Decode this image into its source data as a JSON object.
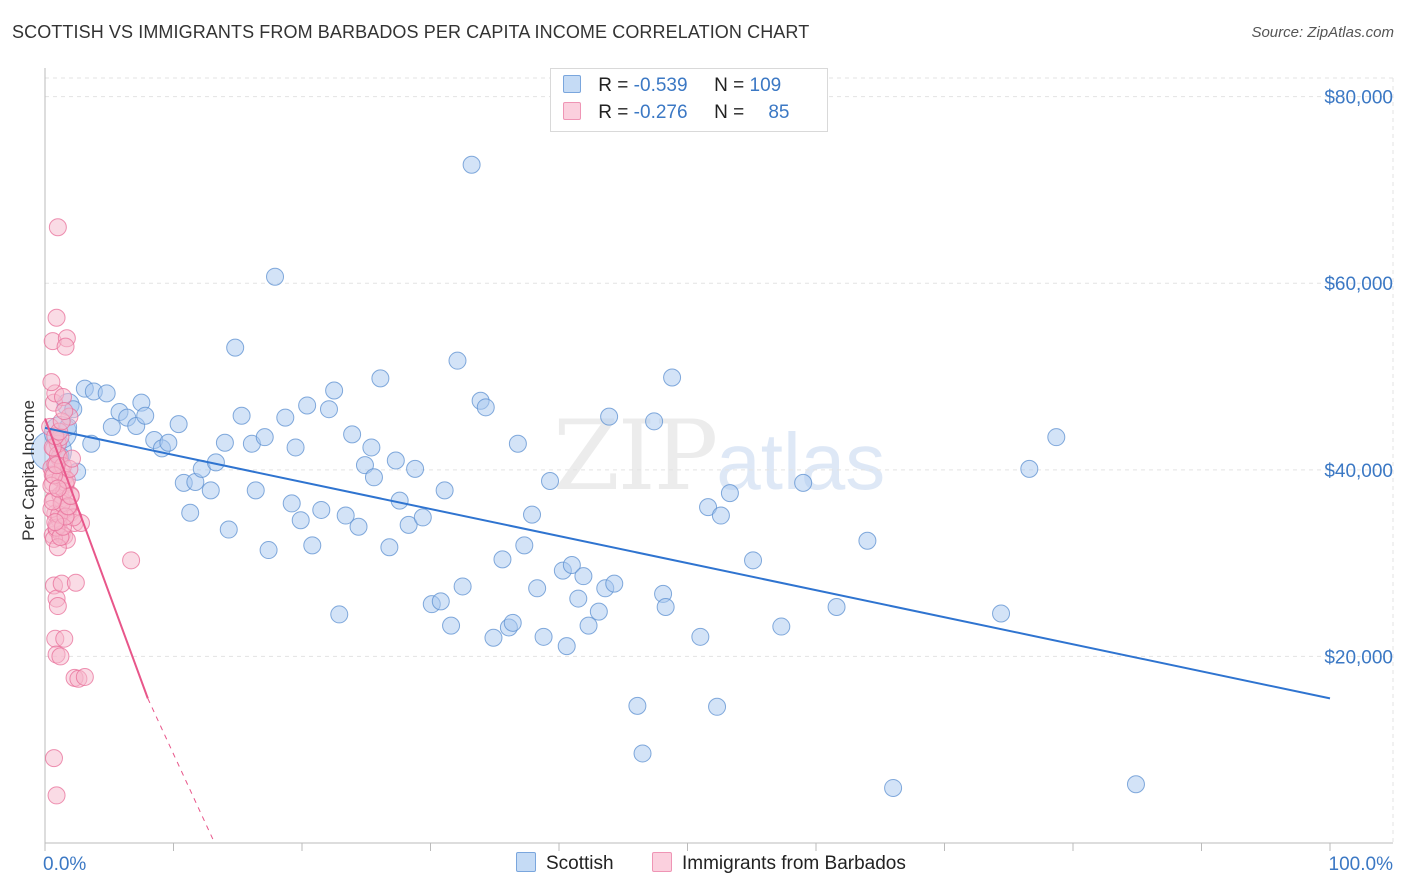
{
  "header": {
    "title": "SCOTTISH VS IMMIGRANTS FROM BARBADOS PER CAPITA INCOME CORRELATION CHART",
    "source": "Source: ZipAtlas.com"
  },
  "watermark": {
    "zip": "ZIP",
    "atlas": "atlas"
  },
  "legend": {
    "rows": [
      {
        "r_label": "R =",
        "r_value": "-0.539",
        "n_label": "N =",
        "n_value": "109",
        "color": "#a8c8f0"
      },
      {
        "r_label": "R =",
        "r_value": "-0.276",
        "n_label": "N =",
        "n_value": "85",
        "color": "#f6b8cc"
      }
    ]
  },
  "bottom_legend": {
    "scottish": "Scottish",
    "barbados": "Immigrants from Barbados"
  },
  "chart_data": {
    "type": "scatter",
    "title": "SCOTTISH VS IMMIGRANTS FROM BARBADOS PER CAPITA INCOME CORRELATION CHART",
    "xlabel": "",
    "ylabel": "Per Capita Income",
    "xlim": [
      0,
      100
    ],
    "ylim": [
      0,
      82000
    ],
    "x_tick_labels": [
      "0.0%",
      "100.0%"
    ],
    "y_ticks": [
      20000,
      40000,
      60000,
      80000
    ],
    "y_tick_labels": [
      "$20,000",
      "$40,000",
      "$60,000",
      "$80,000"
    ],
    "grid": true,
    "series": [
      {
        "name": "Scottish",
        "color": "#a8c8f0",
        "stroke": "#5b8fd0",
        "line_color": "#2f74d0",
        "R": -0.539,
        "N": 109,
        "trend": {
          "x": [
            0,
            100
          ],
          "y": [
            44500,
            15500
          ]
        },
        "points": [
          [
            0.5,
            42000
          ],
          [
            1.2,
            44000
          ],
          [
            1.8,
            47000
          ],
          [
            2.2,
            46500
          ],
          [
            3.1,
            48700
          ],
          [
            3.8,
            48400
          ],
          [
            4.8,
            48200
          ],
          [
            5.2,
            44600
          ],
          [
            5.8,
            46200
          ],
          [
            6.4,
            45600
          ],
          [
            7.1,
            44700
          ],
          [
            7.5,
            47200
          ],
          [
            7.8,
            45800
          ],
          [
            8.5,
            43200
          ],
          [
            9.1,
            42300
          ],
          [
            9.6,
            42900
          ],
          [
            10.4,
            44900
          ],
          [
            10.8,
            38600
          ],
          [
            11.3,
            35400
          ],
          [
            11.7,
            38700
          ],
          [
            12.2,
            40100
          ],
          [
            12.9,
            37800
          ],
          [
            13.3,
            40800
          ],
          [
            14.0,
            42900
          ],
          [
            14.3,
            33600
          ],
          [
            14.8,
            53100
          ],
          [
            15.3,
            45800
          ],
          [
            16.1,
            42800
          ],
          [
            16.4,
            37800
          ],
          [
            17.1,
            43500
          ],
          [
            17.4,
            31400
          ],
          [
            17.9,
            60700
          ],
          [
            18.7,
            45600
          ],
          [
            19.2,
            36400
          ],
          [
            19.5,
            42400
          ],
          [
            19.9,
            34600
          ],
          [
            20.4,
            46900
          ],
          [
            20.8,
            31900
          ],
          [
            21.5,
            35700
          ],
          [
            22.1,
            46500
          ],
          [
            22.5,
            48500
          ],
          [
            22.9,
            24500
          ],
          [
            23.4,
            35100
          ],
          [
            23.9,
            43800
          ],
          [
            24.4,
            33900
          ],
          [
            24.9,
            40500
          ],
          [
            25.4,
            42400
          ],
          [
            25.6,
            39200
          ],
          [
            26.1,
            49800
          ],
          [
            26.8,
            31700
          ],
          [
            27.3,
            41000
          ],
          [
            27.6,
            36700
          ],
          [
            28.3,
            34100
          ],
          [
            28.8,
            40100
          ],
          [
            29.4,
            34900
          ],
          [
            30.1,
            25600
          ],
          [
            30.8,
            25900
          ],
          [
            31.1,
            37800
          ],
          [
            31.6,
            23300
          ],
          [
            32.1,
            51700
          ],
          [
            32.5,
            27500
          ],
          [
            33.2,
            72700
          ],
          [
            33.9,
            47400
          ],
          [
            34.3,
            46700
          ],
          [
            34.9,
            22000
          ],
          [
            35.6,
            30400
          ],
          [
            36.1,
            23100
          ],
          [
            36.4,
            23600
          ],
          [
            36.8,
            42800
          ],
          [
            37.3,
            31900
          ],
          [
            37.9,
            35200
          ],
          [
            38.3,
            27300
          ],
          [
            38.8,
            22100
          ],
          [
            39.3,
            38800
          ],
          [
            40.3,
            29200
          ],
          [
            40.6,
            21100
          ],
          [
            41.0,
            29800
          ],
          [
            41.5,
            26200
          ],
          [
            41.9,
            28600
          ],
          [
            42.3,
            23300
          ],
          [
            43.1,
            24800
          ],
          [
            43.6,
            27300
          ],
          [
            43.9,
            45700
          ],
          [
            44.3,
            27800
          ],
          [
            46.1,
            14700
          ],
          [
            46.5,
            9600
          ],
          [
            47.4,
            45200
          ],
          [
            48.1,
            26700
          ],
          [
            48.3,
            25300
          ],
          [
            48.8,
            49900
          ],
          [
            51.0,
            22100
          ],
          [
            51.6,
            36000
          ],
          [
            52.3,
            14600
          ],
          [
            52.6,
            35100
          ],
          [
            53.3,
            37500
          ],
          [
            55.1,
            30300
          ],
          [
            57.3,
            23200
          ],
          [
            59.0,
            38600
          ],
          [
            61.6,
            25300
          ],
          [
            64.0,
            32400
          ],
          [
            66.0,
            5900
          ],
          [
            74.4,
            24600
          ],
          [
            76.6,
            40100
          ],
          [
            78.7,
            43500
          ],
          [
            84.9,
            6300
          ],
          [
            1.2,
            41500
          ],
          [
            2.5,
            39800
          ],
          [
            1.8,
            44600
          ],
          [
            3.6,
            42800
          ]
        ],
        "sizes": {
          "large_point_index": 1
        }
      },
      {
        "name": "Immigrants from Barbados",
        "color": "#f6b8cc",
        "stroke": "#e86d98",
        "line_color": "#e8568a",
        "R": -0.276,
        "N": 85,
        "trend": {
          "x": [
            0,
            8.0
          ],
          "y": [
            45500,
            15500
          ]
        },
        "trend_dashed": {
          "x": [
            8.0,
            13.2
          ],
          "y": [
            15500,
            0
          ]
        },
        "points": [
          [
            0.4,
            44600
          ],
          [
            0.5,
            40200
          ],
          [
            0.6,
            38600
          ],
          [
            0.7,
            36900
          ],
          [
            0.8,
            35300
          ],
          [
            0.9,
            34100
          ],
          [
            0.6,
            33000
          ],
          [
            0.7,
            47200
          ],
          [
            0.8,
            48200
          ],
          [
            0.5,
            49400
          ],
          [
            0.9,
            56300
          ],
          [
            0.6,
            53800
          ],
          [
            1.7,
            54100
          ],
          [
            1.6,
            53200
          ],
          [
            1.0,
            66000
          ],
          [
            0.7,
            42300
          ],
          [
            1.1,
            41300
          ],
          [
            1.3,
            39800
          ],
          [
            1.5,
            39200
          ],
          [
            1.6,
            38400
          ],
          [
            1.2,
            37300
          ],
          [
            1.4,
            36600
          ],
          [
            1.8,
            35700
          ],
          [
            2.0,
            35400
          ],
          [
            1.1,
            34700
          ],
          [
            0.9,
            33600
          ],
          [
            1.3,
            33100
          ],
          [
            1.5,
            32900
          ],
          [
            1.7,
            32500
          ],
          [
            2.3,
            34300
          ],
          [
            2.8,
            34300
          ],
          [
            1.0,
            42800
          ],
          [
            1.2,
            43500
          ],
          [
            1.9,
            45700
          ],
          [
            1.4,
            47800
          ],
          [
            0.7,
            27600
          ],
          [
            0.9,
            26200
          ],
          [
            1.0,
            25400
          ],
          [
            1.3,
            27800
          ],
          [
            2.4,
            27900
          ],
          [
            0.8,
            21900
          ],
          [
            1.5,
            21900
          ],
          [
            0.9,
            20200
          ],
          [
            1.2,
            20000
          ],
          [
            2.3,
            17700
          ],
          [
            2.6,
            17600
          ],
          [
            3.1,
            17800
          ],
          [
            0.7,
            9100
          ],
          [
            0.9,
            5100
          ],
          [
            6.7,
            30300
          ],
          [
            0.6,
            39500
          ],
          [
            0.8,
            40600
          ],
          [
            1.0,
            41600
          ],
          [
            1.2,
            39100
          ],
          [
            1.4,
            40400
          ],
          [
            1.6,
            38600
          ],
          [
            1.8,
            36000
          ],
          [
            2.0,
            37300
          ],
          [
            2.2,
            34900
          ],
          [
            0.5,
            35800
          ],
          [
            0.7,
            32600
          ],
          [
            0.9,
            33800
          ],
          [
            1.1,
            35200
          ],
          [
            1.3,
            36400
          ],
          [
            1.5,
            37700
          ],
          [
            1.7,
            38900
          ],
          [
            1.9,
            40100
          ],
          [
            2.1,
            41200
          ],
          [
            0.6,
            42400
          ],
          [
            0.8,
            43600
          ],
          [
            1.0,
            31700
          ],
          [
            1.2,
            32800
          ],
          [
            1.4,
            33900
          ],
          [
            1.6,
            35000
          ],
          [
            1.8,
            36100
          ],
          [
            2.0,
            37200
          ],
          [
            0.5,
            38300
          ],
          [
            0.7,
            39400
          ],
          [
            0.9,
            40500
          ],
          [
            1.1,
            44100
          ],
          [
            1.3,
            45200
          ],
          [
            1.5,
            46300
          ],
          [
            0.6,
            36600
          ],
          [
            0.8,
            34400
          ],
          [
            1.0,
            38000
          ]
        ]
      }
    ]
  }
}
